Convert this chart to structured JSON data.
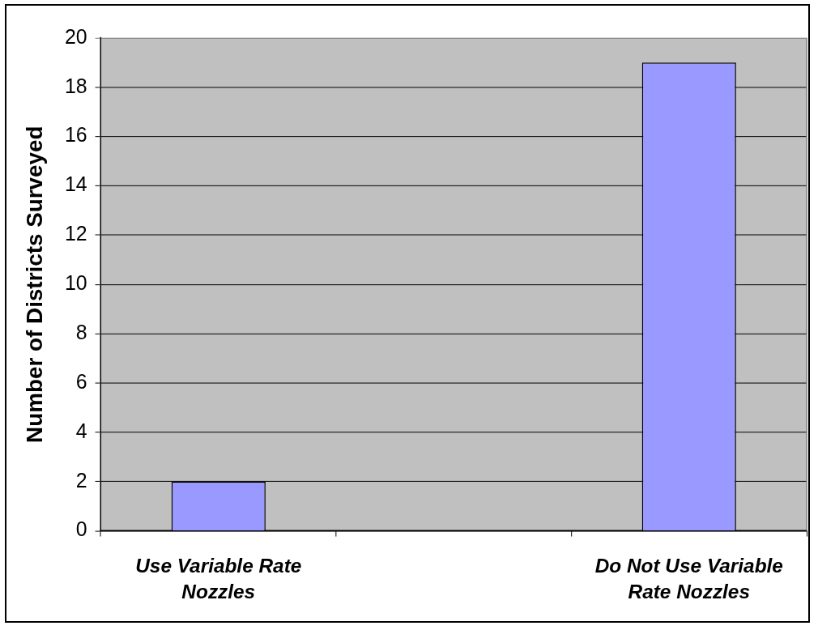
{
  "chart_data": {
    "type": "bar",
    "ylabel": "Number of Districts Surveyed",
    "categories": [
      "Use Variable Rate Nozzles",
      null,
      "Do Not Use Variable Rate Nozzles"
    ],
    "values": [
      2,
      null,
      19
    ],
    "color": "#9999ff",
    "ylim": [
      0,
      20
    ],
    "yticks": [
      0,
      2,
      4,
      6,
      8,
      10,
      12,
      14,
      16,
      18,
      20
    ],
    "grid": "y"
  }
}
